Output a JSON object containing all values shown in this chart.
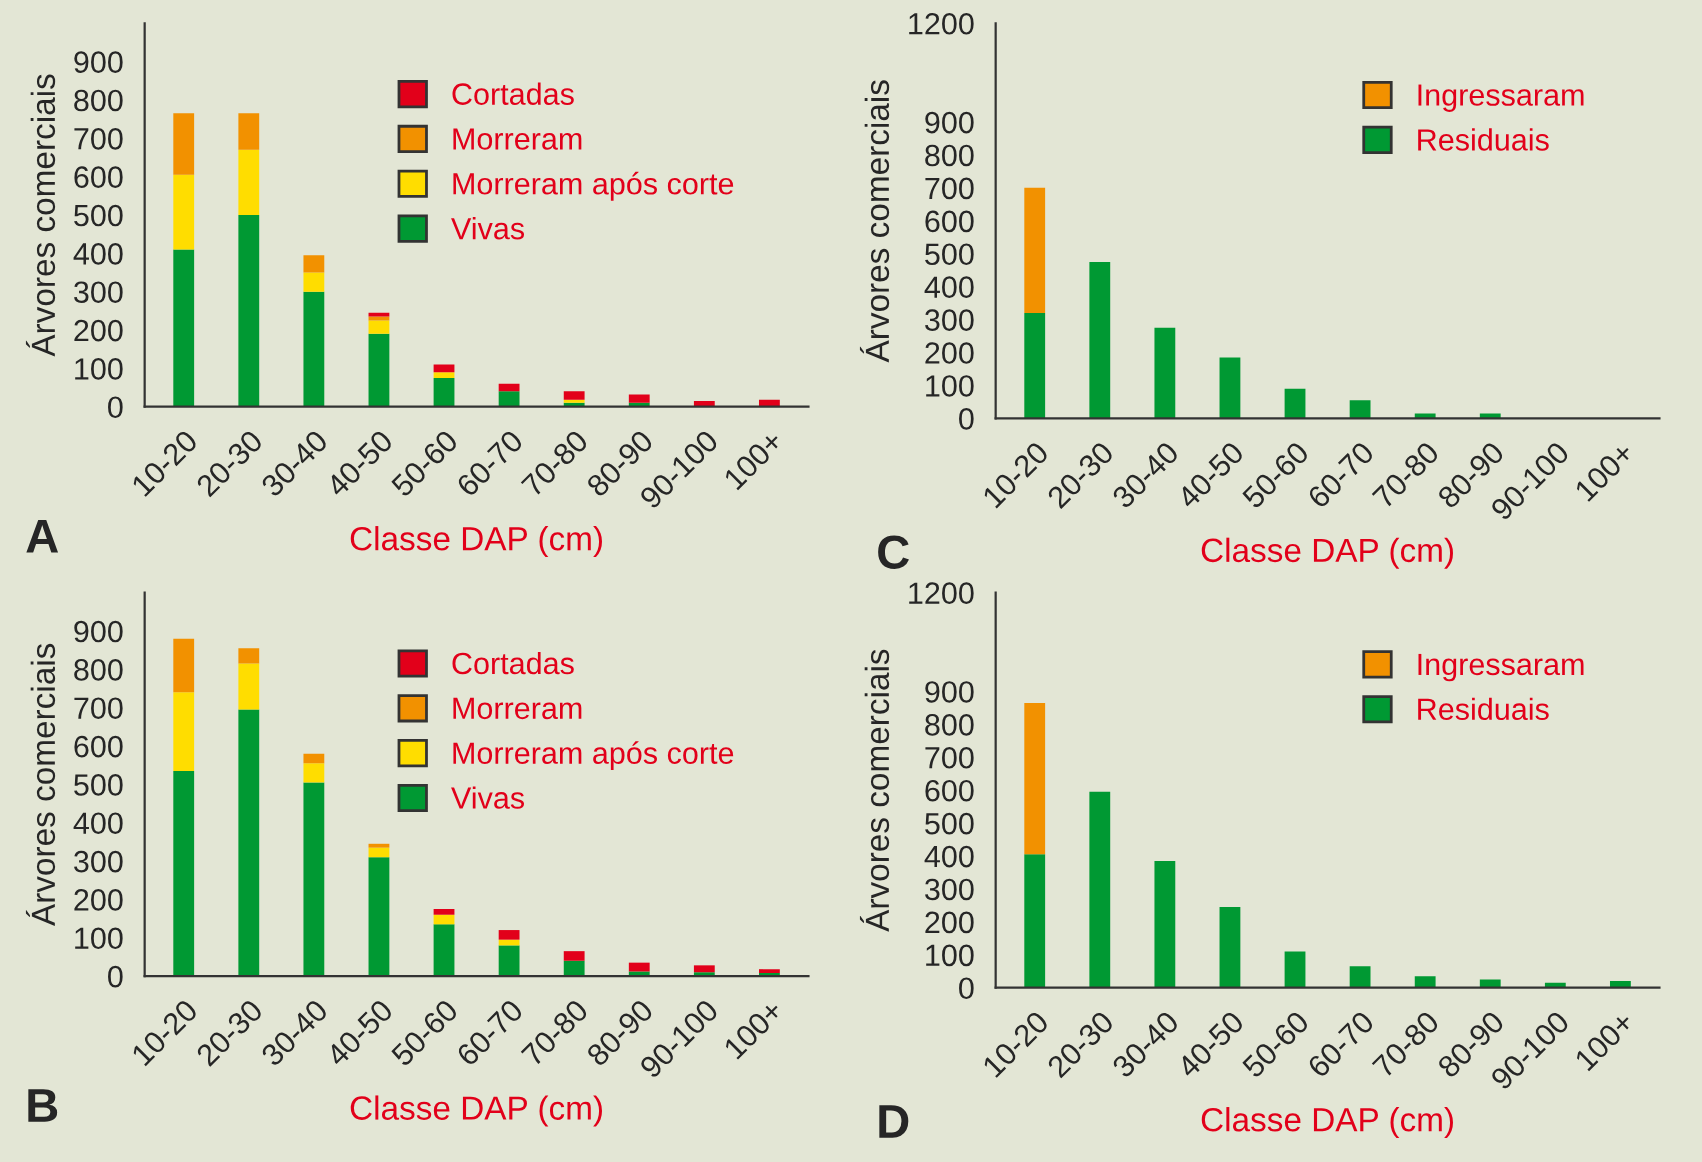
{
  "chart_data": [
    {
      "type": "bar",
      "stacked": true,
      "xlabel": "Classe DAP (cm)",
      "ylabel": "Árvores comerciais",
      "annotations": [
        "A"
      ],
      "categories": [
        "10-20",
        "20-30",
        "30-40",
        "40-50",
        "50-60",
        "60-70",
        "70-80",
        "80-90",
        "90-100",
        "100+"
      ],
      "series": [
        {
          "name": "Vivas",
          "color": "#009933",
          "values": [
            410,
            500,
            300,
            190,
            75,
            40,
            10,
            10,
            0,
            0
          ]
        },
        {
          "name": "Morreram após corte",
          "color": "#ffdd00",
          "values": [
            195,
            170,
            50,
            35,
            15,
            0,
            8,
            0,
            0,
            0
          ]
        },
        {
          "name": "Morreram",
          "color": "#f29100",
          "values": [
            160,
            95,
            45,
            10,
            0,
            0,
            0,
            0,
            0,
            0
          ]
        },
        {
          "name": "Cortadas",
          "color": "#e2001a",
          "values": [
            0,
            0,
            0,
            10,
            20,
            20,
            22,
            22,
            15,
            18
          ]
        }
      ],
      "ylim": [
        0,
        1000
      ],
      "yticks": [
        0,
        100,
        200,
        300,
        400,
        500,
        600,
        700,
        800,
        900
      ],
      "legend": "top right",
      "grid": false
    },
    {
      "type": "bar",
      "stacked": true,
      "xlabel": "Classe DAP (cm)",
      "ylabel": "Árvores comerciais",
      "annotations": [
        "C"
      ],
      "categories": [
        "10-20",
        "20-30",
        "30-40",
        "40-50",
        "50-60",
        "60-70",
        "70-80",
        "80-90",
        "90-100",
        "100+"
      ],
      "series": [
        {
          "name": "Residuais",
          "color": "#009933",
          "values": [
            320,
            475,
            275,
            185,
            90,
            55,
            15,
            15,
            0,
            0
          ]
        },
        {
          "name": "Ingressaram",
          "color": "#f29100",
          "values": [
            380,
            0,
            0,
            0,
            0,
            0,
            0,
            0,
            0,
            0
          ]
        }
      ],
      "ylim": [
        0,
        1200
      ],
      "yticks": [
        0,
        100,
        200,
        300,
        400,
        500,
        600,
        700,
        800,
        900,
        1200
      ],
      "legend": "top right",
      "grid": false
    },
    {
      "type": "bar",
      "stacked": true,
      "xlabel": "Classe DAP (cm)",
      "ylabel": "Árvores comerciais",
      "annotations": [
        "B"
      ],
      "categories": [
        "10-20",
        "20-30",
        "30-40",
        "40-50",
        "50-60",
        "60-70",
        "70-80",
        "80-90",
        "90-100",
        "100+"
      ],
      "series": [
        {
          "name": "Vivas",
          "color": "#009933",
          "values": [
            535,
            695,
            505,
            310,
            135,
            80,
            40,
            12,
            10,
            8
          ]
        },
        {
          "name": "Morreram após corte",
          "color": "#ffdd00",
          "values": [
            205,
            120,
            50,
            25,
            25,
            15,
            0,
            0,
            0,
            0
          ]
        },
        {
          "name": "Morreram",
          "color": "#f29100",
          "values": [
            140,
            40,
            25,
            10,
            0,
            0,
            0,
            0,
            0,
            0
          ]
        },
        {
          "name": "Cortadas",
          "color": "#e2001a",
          "values": [
            0,
            0,
            0,
            0,
            15,
            25,
            25,
            23,
            18,
            10
          ]
        }
      ],
      "ylim": [
        0,
        1000
      ],
      "yticks": [
        0,
        100,
        200,
        300,
        400,
        500,
        600,
        700,
        800,
        900
      ],
      "legend": "top right",
      "grid": false
    },
    {
      "type": "bar",
      "stacked": true,
      "xlabel": "Classe DAP (cm)",
      "ylabel": "Árvores comerciais",
      "annotations": [
        "D"
      ],
      "categories": [
        "10-20",
        "20-30",
        "30-40",
        "40-50",
        "50-60",
        "60-70",
        "70-80",
        "80-90",
        "90-100",
        "100+"
      ],
      "series": [
        {
          "name": "Residuais",
          "color": "#009933",
          "values": [
            405,
            595,
            385,
            245,
            110,
            65,
            35,
            25,
            15,
            20
          ]
        },
        {
          "name": "Ingressaram",
          "color": "#f29100",
          "values": [
            460,
            0,
            0,
            0,
            0,
            0,
            0,
            0,
            0,
            0
          ]
        }
      ],
      "ylim": [
        0,
        1200
      ],
      "yticks": [
        0,
        100,
        200,
        300,
        400,
        500,
        600,
        700,
        800,
        900,
        1200
      ],
      "legend": "top right",
      "grid": false
    }
  ]
}
